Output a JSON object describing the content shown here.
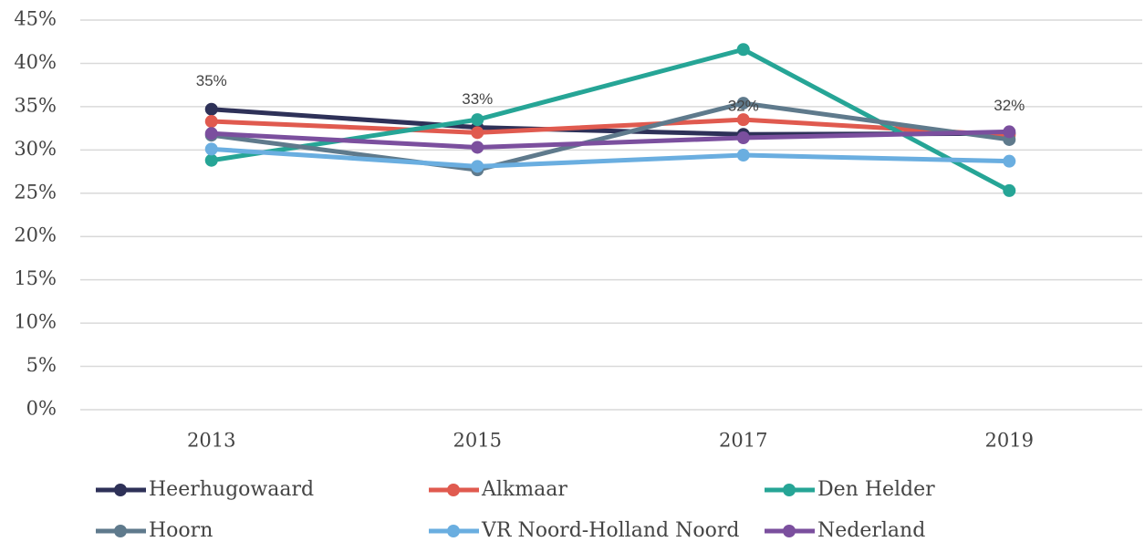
{
  "chart_data": {
    "type": "line",
    "categories": [
      "2013",
      "2015",
      "2017",
      "2019"
    ],
    "ylim": [
      0,
      45
    ],
    "yticks": [
      {
        "value": 0,
        "label": "0%"
      },
      {
        "value": 5,
        "label": "5%"
      },
      {
        "value": 10,
        "label": "10%"
      },
      {
        "value": 15,
        "label": "15%"
      },
      {
        "value": 20,
        "label": "20%"
      },
      {
        "value": 25,
        "label": "25%"
      },
      {
        "value": 30,
        "label": "30%"
      },
      {
        "value": 35,
        "label": "35%"
      },
      {
        "value": 40,
        "label": "40%"
      },
      {
        "value": 45,
        "label": "45%"
      }
    ],
    "grid": true,
    "series": [
      {
        "name": "Heerhugowaard",
        "color": "#2e3158",
        "values": [
          34.7,
          32.6,
          31.8,
          31.9
        ],
        "value_labels": [
          "35%",
          "33%",
          "32%",
          "32%"
        ]
      },
      {
        "name": "Alkmaar",
        "color": "#e05a4f",
        "values": [
          33.3,
          32.0,
          33.5,
          31.7
        ]
      },
      {
        "name": "Den Helder",
        "color": "#26a596",
        "values": [
          28.8,
          33.5,
          41.6,
          25.3
        ]
      },
      {
        "name": "Hoorn",
        "color": "#5f7a8c",
        "values": [
          31.7,
          27.7,
          35.4,
          31.2
        ]
      },
      {
        "name": "VR Noord-Holland Noord",
        "color": "#6aaee0",
        "values": [
          30.1,
          28.1,
          29.4,
          28.7
        ]
      },
      {
        "name": "Nederland",
        "color": "#7b4f9e",
        "values": [
          31.9,
          30.3,
          31.4,
          32.1
        ]
      }
    ]
  }
}
